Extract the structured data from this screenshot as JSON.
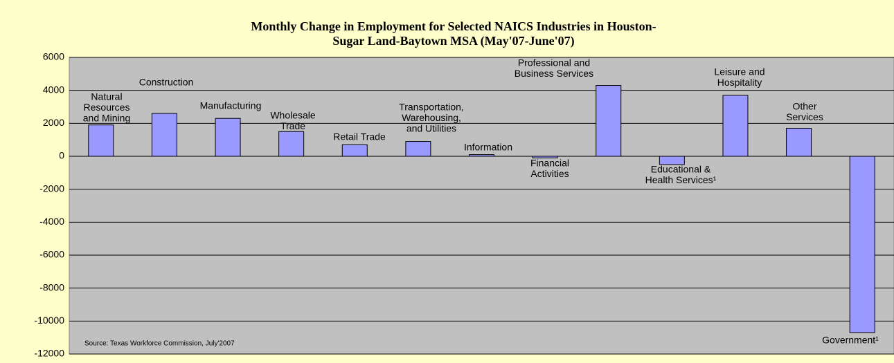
{
  "chart_data": {
    "type": "bar",
    "title": [
      "Monthly Change in Employment for Selected NAICS Industries in Houston-",
      "Sugar Land-Baytown MSA (May'07-June'07)"
    ],
    "source": "Source: Texas Workforce Commission, July'2007",
    "categories": [
      [
        "Natural",
        "Resources",
        "and Mining"
      ],
      [
        "Construction"
      ],
      [
        "Manufacturing"
      ],
      [
        "Wholesale",
        "Trade"
      ],
      [
        "Retail Trade"
      ],
      [
        "Transportation,",
        "Warehousing,",
        "and Utilities"
      ],
      [
        "Information"
      ],
      [
        "Financial",
        "Activities"
      ],
      [
        "Professional and",
        "Business Services"
      ],
      [
        "Educational &",
        "Health Services¹"
      ],
      [
        "Leisure and",
        "Hospitality"
      ],
      [
        "Other",
        "Services"
      ],
      [
        "Government¹"
      ]
    ],
    "values": [
      1900,
      2600,
      2300,
      1500,
      700,
      900,
      100,
      -100,
      4300,
      -500,
      3700,
      1700,
      -10700
    ],
    "color": "#9999ff",
    "ylim": [
      -12000,
      6000
    ],
    "yticks": [
      -12000,
      -10000,
      -8000,
      -6000,
      -4000,
      -2000,
      0,
      2000,
      4000,
      6000
    ],
    "grid": true
  }
}
